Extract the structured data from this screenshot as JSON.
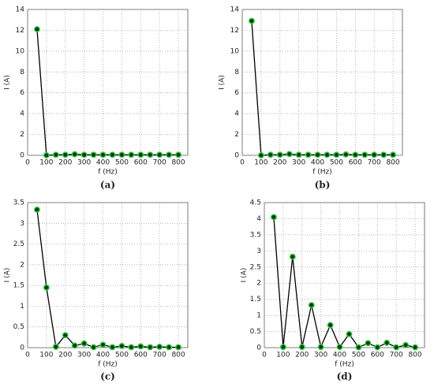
{
  "chart_data": [
    {
      "type": "line",
      "caption": "(a)",
      "xlabel": "f (Hz)",
      "ylabel": "I (A)",
      "x": [
        50,
        100,
        150,
        200,
        250,
        300,
        350,
        400,
        450,
        500,
        550,
        600,
        650,
        700,
        750,
        800
      ],
      "values": [
        12.1,
        0,
        0.05,
        0.05,
        0.1,
        0.05,
        0.05,
        0.05,
        0.05,
        0.05,
        0.05,
        0.05,
        0.05,
        0.05,
        0.05,
        0.05
      ],
      "color": "#000000",
      "marker_color": "#2ecc40",
      "xlim": [
        0,
        850
      ],
      "xticks": [
        0,
        100,
        200,
        300,
        400,
        500,
        600,
        700,
        800
      ],
      "ylim": [
        0,
        14
      ],
      "yticks": [
        0,
        2,
        4,
        6,
        8,
        10,
        12,
        14
      ],
      "grid": true
    },
    {
      "type": "line",
      "caption": "(b)",
      "xlabel": "f (Hz)",
      "ylabel": "I (A)",
      "x": [
        50,
        100,
        150,
        200,
        250,
        300,
        350,
        400,
        450,
        500,
        550,
        600,
        650,
        700,
        750,
        800
      ],
      "values": [
        12.9,
        0,
        0.05,
        0.05,
        0.12,
        0.05,
        0.05,
        0.05,
        0.05,
        0.05,
        0.08,
        0.05,
        0.05,
        0.05,
        0.05,
        0.05
      ],
      "color": "#000000",
      "marker_color": "#2ecc40",
      "xlim": [
        0,
        850
      ],
      "xticks": [
        0,
        100,
        200,
        300,
        400,
        500,
        600,
        700,
        800
      ],
      "ylim": [
        0,
        14
      ],
      "yticks": [
        0,
        2,
        4,
        6,
        8,
        10,
        12,
        14
      ],
      "grid": true
    },
    {
      "type": "line",
      "caption": "(c)",
      "xlabel": "f (Hz)",
      "ylabel": "I (A)",
      "x": [
        50,
        100,
        150,
        200,
        250,
        300,
        350,
        400,
        450,
        500,
        550,
        600,
        650,
        700,
        750,
        800
      ],
      "values": [
        3.33,
        1.45,
        0.02,
        0.3,
        0.05,
        0.1,
        0.01,
        0.07,
        0.01,
        0.04,
        0.01,
        0.03,
        0.01,
        0.02,
        0.01,
        0.01
      ],
      "color": "#000000",
      "marker_color": "#2ecc40",
      "xlim": [
        0,
        850
      ],
      "xticks": [
        0,
        100,
        200,
        300,
        400,
        500,
        600,
        700,
        800
      ],
      "ylim": [
        0,
        3.5
      ],
      "yticks": [
        0,
        0.5,
        1,
        1.5,
        2,
        2.5,
        3,
        3.5
      ],
      "grid": true
    },
    {
      "type": "line",
      "caption": "(d)",
      "xlabel": "f (Hz)",
      "ylabel": "I (A)",
      "x": [
        50,
        100,
        150,
        200,
        250,
        300,
        350,
        400,
        450,
        500,
        550,
        600,
        650,
        700,
        750,
        800
      ],
      "values": [
        4.05,
        0.02,
        2.82,
        0.02,
        1.32,
        0.02,
        0.7,
        0.02,
        0.42,
        0.01,
        0.14,
        0.01,
        0.15,
        0.01,
        0.08,
        0.01
      ],
      "color": "#000000",
      "marker_color": "#2ecc40",
      "xlim": [
        0,
        850
      ],
      "xticks": [
        0,
        100,
        200,
        300,
        400,
        500,
        600,
        700,
        800
      ],
      "ylim": [
        0,
        4.5
      ],
      "yticks": [
        0,
        0.5,
        1,
        1.5,
        2,
        2.5,
        3,
        3.5,
        4,
        4.5
      ],
      "grid": true
    }
  ]
}
